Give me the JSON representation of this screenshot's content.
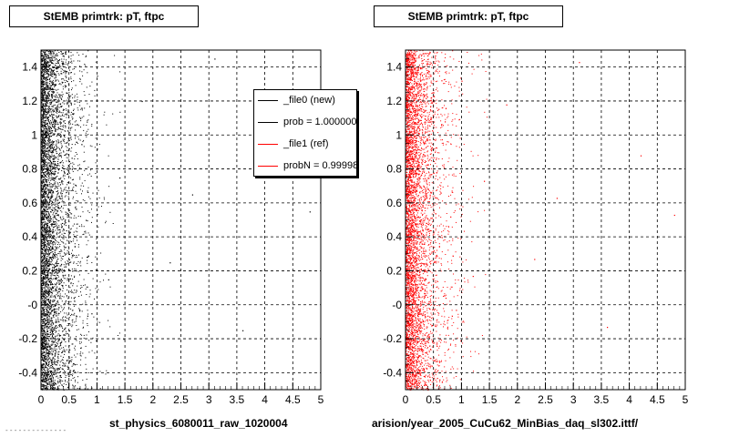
{
  "panels": [
    {
      "title": "StEMB primtrk: pT, ftpc",
      "footer": "st_physics_6080011_raw_1020004",
      "color": "#000000"
    },
    {
      "title": "StEMB primtrk: pT, ftpc",
      "footer": "arision/year_2005_CuCu62_MinBias_daq_sl302.ittf/",
      "color": "#ff0000"
    }
  ],
  "legend": {
    "entries": [
      {
        "label": "_file0 (new)",
        "color": "#000000"
      },
      {
        "label": "prob = 1.000000",
        "color": "#000000"
      },
      {
        "label": "_file1 (ref)",
        "color": "#ff0000"
      },
      {
        "label": "probN = 0.999988",
        "color": "#ff0000"
      }
    ]
  },
  "corner_note": "- - - - - - - - - - - - - -",
  "chart_data": [
    {
      "type": "scatter",
      "title": "StEMB primtrk: pT, ftpc",
      "xlabel": "",
      "ylabel": "",
      "xlim": [
        0,
        5
      ],
      "ylim": [
        -0.5,
        1.5
      ],
      "x_ticks": [
        0,
        0.5,
        1,
        1.5,
        2,
        2.5,
        3,
        3.5,
        4,
        4.5,
        5
      ],
      "y_ticks": [
        -0.4,
        -0.2,
        0,
        0.2,
        0.4,
        0.6,
        0.8,
        1,
        1.2,
        1.4
      ],
      "x_tick_labels": [
        "0",
        "0.5",
        "1",
        "1.5",
        "2",
        "2.5",
        "3",
        "3.5",
        "4",
        "4.5",
        "5"
      ],
      "y_tick_labels": [
        "-0.4",
        "-0.2",
        "-0",
        "0.2",
        "0.4",
        "0.6",
        "0.8",
        "1",
        "1.2",
        "1.4"
      ],
      "grid": true,
      "series": [
        {
          "name": "_file0 (new)",
          "color": "#000000",
          "distribution": "dense near x=0, falling off by x~1",
          "points": [
            [
              0.03,
              1.42
            ],
            [
              0.05,
              0.7
            ],
            [
              0.08,
              -0.3
            ],
            [
              0.1,
              1.1
            ],
            [
              0.12,
              0.2
            ],
            [
              0.15,
              -0.45
            ],
            [
              0.18,
              0.9
            ],
            [
              0.2,
              0.4
            ],
            [
              0.22,
              1.3
            ],
            [
              0.25,
              -0.1
            ],
            [
              0.3,
              0.6
            ],
            [
              0.35,
              1.0
            ],
            [
              0.4,
              -0.2
            ],
            [
              0.45,
              1.25
            ],
            [
              0.5,
              0.3
            ],
            [
              0.55,
              0.8
            ],
            [
              0.6,
              -0.35
            ],
            [
              0.7,
              1.1
            ],
            [
              0.8,
              0.5
            ],
            [
              0.9,
              -0.05
            ],
            [
              1.0,
              1.35
            ],
            [
              1.2,
              0.15
            ],
            [
              1.4,
              0.75
            ],
            [
              1.8,
              1.2
            ],
            [
              2.3,
              0.25
            ],
            [
              2.7,
              0.65
            ],
            [
              3.1,
              1.45
            ],
            [
              3.6,
              -0.15
            ],
            [
              4.2,
              0.9
            ],
            [
              4.8,
              0.55
            ]
          ]
        }
      ]
    },
    {
      "type": "scatter",
      "title": "StEMB primtrk: pT, ftpc",
      "xlabel": "",
      "ylabel": "",
      "xlim": [
        0,
        5
      ],
      "ylim": [
        -0.5,
        1.5
      ],
      "x_ticks": [
        0,
        0.5,
        1,
        1.5,
        2,
        2.5,
        3,
        3.5,
        4,
        4.5,
        5
      ],
      "y_ticks": [
        -0.4,
        -0.2,
        0,
        0.2,
        0.4,
        0.6,
        0.8,
        1,
        1.2,
        1.4
      ],
      "x_tick_labels": [
        "0",
        "0.5",
        "1",
        "1.5",
        "2",
        "2.5",
        "3",
        "3.5",
        "4",
        "4.5",
        "5"
      ],
      "y_tick_labels": [
        "-0.4",
        "-0.2",
        "-0",
        "0.2",
        "0.4",
        "0.6",
        "0.8",
        "1",
        "1.2",
        "1.4"
      ],
      "grid": true,
      "series": [
        {
          "name": "_file1 (ref)",
          "color": "#ff0000",
          "distribution": "dense near x=0, falling off by x~1",
          "points": [
            [
              0.03,
              1.4
            ],
            [
              0.05,
              0.65
            ],
            [
              0.08,
              -0.28
            ],
            [
              0.1,
              1.05
            ],
            [
              0.12,
              0.22
            ],
            [
              0.15,
              -0.42
            ],
            [
              0.18,
              0.88
            ],
            [
              0.2,
              0.42
            ],
            [
              0.22,
              1.28
            ],
            [
              0.25,
              -0.08
            ],
            [
              0.3,
              0.58
            ],
            [
              0.35,
              1.02
            ],
            [
              0.4,
              -0.22
            ],
            [
              0.45,
              1.22
            ],
            [
              0.5,
              0.32
            ],
            [
              0.55,
              0.78
            ],
            [
              0.6,
              -0.33
            ],
            [
              0.7,
              1.08
            ],
            [
              0.8,
              0.52
            ],
            [
              0.9,
              -0.03
            ],
            [
              1.0,
              1.32
            ],
            [
              1.2,
              0.17
            ],
            [
              1.4,
              0.73
            ],
            [
              1.8,
              1.18
            ],
            [
              2.3,
              0.27
            ],
            [
              2.7,
              0.63
            ],
            [
              3.1,
              1.43
            ],
            [
              3.6,
              -0.13
            ],
            [
              4.2,
              0.88
            ],
            [
              4.8,
              0.53
            ]
          ]
        }
      ]
    }
  ]
}
